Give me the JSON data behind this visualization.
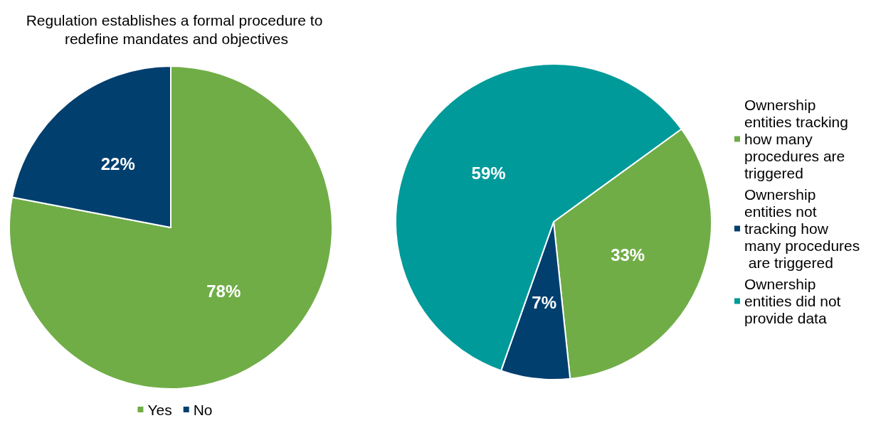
{
  "chart_data": [
    {
      "type": "pie",
      "title": "Regulation establishes a formal procedure to redefine mandates and objectives",
      "categories": [
        "Yes",
        "No"
      ],
      "values": [
        78,
        22
      ],
      "colors": [
        "#70ad47",
        "#003f6e"
      ],
      "value_labels": [
        "78%",
        "22%"
      ],
      "legend": "bottom"
    },
    {
      "type": "pie",
      "categories": [
        "Ownership entities tracking how many procedures are triggered",
        "Ownership entities not tracking how many procedures are triggered",
        "Ownership entities did not provide data"
      ],
      "values": [
        33,
        7,
        59
      ],
      "colors": [
        "#70ad47",
        "#003f6e",
        "#009a9a"
      ],
      "value_labels": [
        "33%",
        "7%",
        "59%"
      ],
      "legend": "right"
    }
  ]
}
